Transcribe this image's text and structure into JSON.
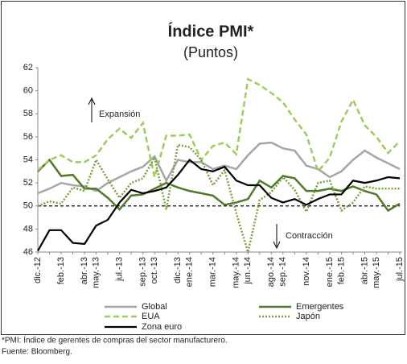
{
  "chart_data": {
    "type": "line",
    "title": "Índice PMI*",
    "subtitle": "(Puntos)",
    "categories": [
      "dic.-12",
      null,
      "feb.-13",
      null,
      "abr.-13",
      "may.-13",
      null,
      "jul.-13",
      null,
      "sep.-13",
      "oct.-13",
      null,
      "dic.-13",
      "ene.-14",
      null,
      "mar.-14",
      null,
      "may.-14",
      "jun.-14",
      null,
      "ago.-14",
      "sep.-14",
      null,
      "nov.-14",
      null,
      "ene.-15",
      "feb.-15",
      null,
      "abr.-15",
      "may.-15",
      null,
      "jul.-15"
    ],
    "series": [
      {
        "name": "Global",
        "color": "#a6a6a6",
        "style": "solid",
        "values": [
          51.1,
          51.5,
          52.0,
          51.8,
          51.7,
          51.3,
          52.0,
          52.5,
          53.0,
          53.4,
          54.3,
          52.2,
          54.0,
          53.8,
          53.8,
          53.2,
          53.5,
          53.2,
          54.4,
          55.4,
          55.5,
          55.0,
          54.8,
          53.5,
          53.2,
          52.5,
          53.0,
          54.0,
          54.8,
          54.2,
          53.7,
          53.2
        ]
      },
      {
        "name": "Emergentes",
        "color": "#4f7b28",
        "style": "solid",
        "values": [
          53.0,
          54.0,
          52.6,
          52.7,
          51.5,
          51.5,
          50.7,
          49.7,
          50.9,
          51.0,
          51.5,
          52.0,
          51.6,
          51.3,
          51.1,
          50.9,
          50.1,
          50.3,
          50.6,
          52.2,
          51.6,
          52.6,
          52.4,
          51.3,
          51.3,
          51.5,
          51.3,
          51.7,
          51.3,
          51.0,
          49.6,
          50.2
        ]
      },
      {
        "name": "EUA",
        "color": "#9ccc5a",
        "style": "dashed",
        "values": [
          53.1,
          54.0,
          54.4,
          53.8,
          53.8,
          54.4,
          55.8,
          56.7,
          55.9,
          57.2,
          52.5,
          56.1,
          56.1,
          56.2,
          54.0,
          55.2,
          55.5,
          54.5,
          61.0,
          60.5,
          59.8,
          59.0,
          57.5,
          56.2,
          53.0,
          54.2,
          57.3,
          59.2,
          57.0,
          56.0,
          54.6,
          55.6
        ]
      },
      {
        "name": "Japón",
        "color": "#77a33c",
        "style": "dotted",
        "values": [
          50.0,
          50.4,
          50.2,
          51.6,
          51.3,
          54.0,
          52.3,
          50.7,
          52.0,
          52.4,
          54.2,
          49.7,
          55.3,
          55.1,
          54.0,
          51.8,
          53.1,
          49.4,
          46.0,
          50.5,
          51.2,
          52.5,
          51.4,
          49.5,
          52.0,
          52.2,
          49.6,
          50.3,
          51.7,
          51.5,
          51.5,
          51.5
        ]
      },
      {
        "name": "Zona euro",
        "color": "#000000",
        "style": "solid",
        "values": [
          46.1,
          47.9,
          47.9,
          46.8,
          46.7,
          48.3,
          48.8,
          50.3,
          51.4,
          51.1,
          51.3,
          51.6,
          52.7,
          54.0,
          53.2,
          53.0,
          53.4,
          52.2,
          51.8,
          51.8,
          50.7,
          50.3,
          50.6,
          50.1,
          50.6,
          51.0,
          51.0,
          52.2,
          52.0,
          52.2,
          52.5,
          52.4
        ]
      }
    ],
    "ylim": [
      46,
      62
    ],
    "yticks": [
      46,
      48,
      50,
      52,
      54,
      56,
      58,
      60,
      62
    ],
    "threshold": 50,
    "annotations": [
      "Expansión",
      "Contracción"
    ],
    "notes": [
      "*PMI: Índice de gerentes de compras del sector manufacturero.",
      "Fuente: Bloomberg."
    ]
  }
}
